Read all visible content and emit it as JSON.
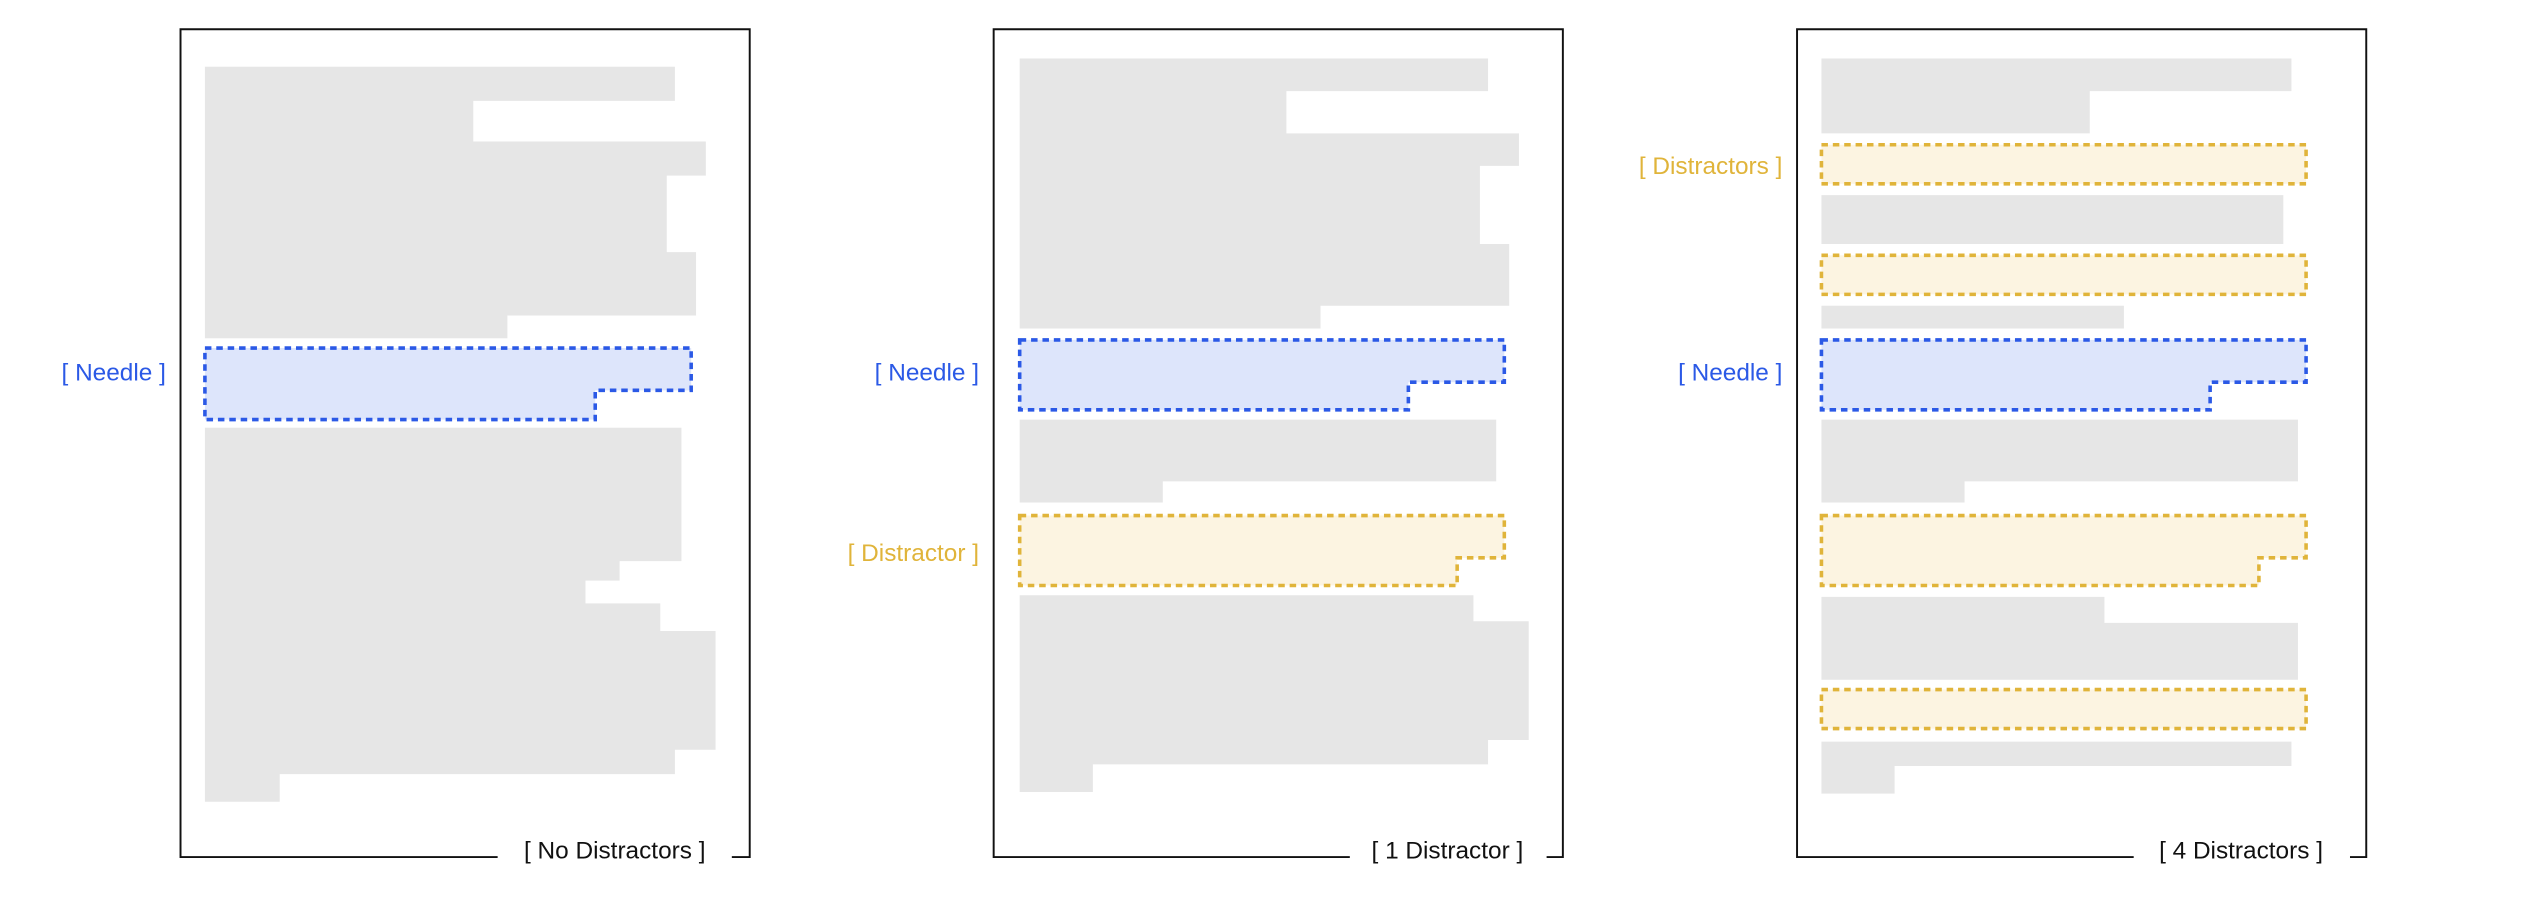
{
  "colors": {
    "background": "#ffffff",
    "frame": "#111111",
    "text_block": "#e6e6e6",
    "needle_stroke": "#2b59e6",
    "needle_fill": "#dde5fb",
    "distractor_stroke": "#e0b43a",
    "distractor_fill": "#fcf4e1",
    "caption_text": "#111111"
  },
  "panels": [
    {
      "caption": "[ No Distractors ]",
      "side_labels": [
        {
          "kind": "needle",
          "text": "[ Needle ]"
        }
      ]
    },
    {
      "caption": "[ 1 Distractor ]",
      "side_labels": [
        {
          "kind": "needle",
          "text": "[ Needle ]"
        },
        {
          "kind": "distractor",
          "text": "[ Distractor ]"
        }
      ]
    },
    {
      "caption": "[ 4 Distractors ]",
      "side_labels": [
        {
          "kind": "distractor",
          "text": "[ Distractors ]"
        },
        {
          "kind": "needle",
          "text": "[ Needle ]"
        }
      ]
    }
  ]
}
